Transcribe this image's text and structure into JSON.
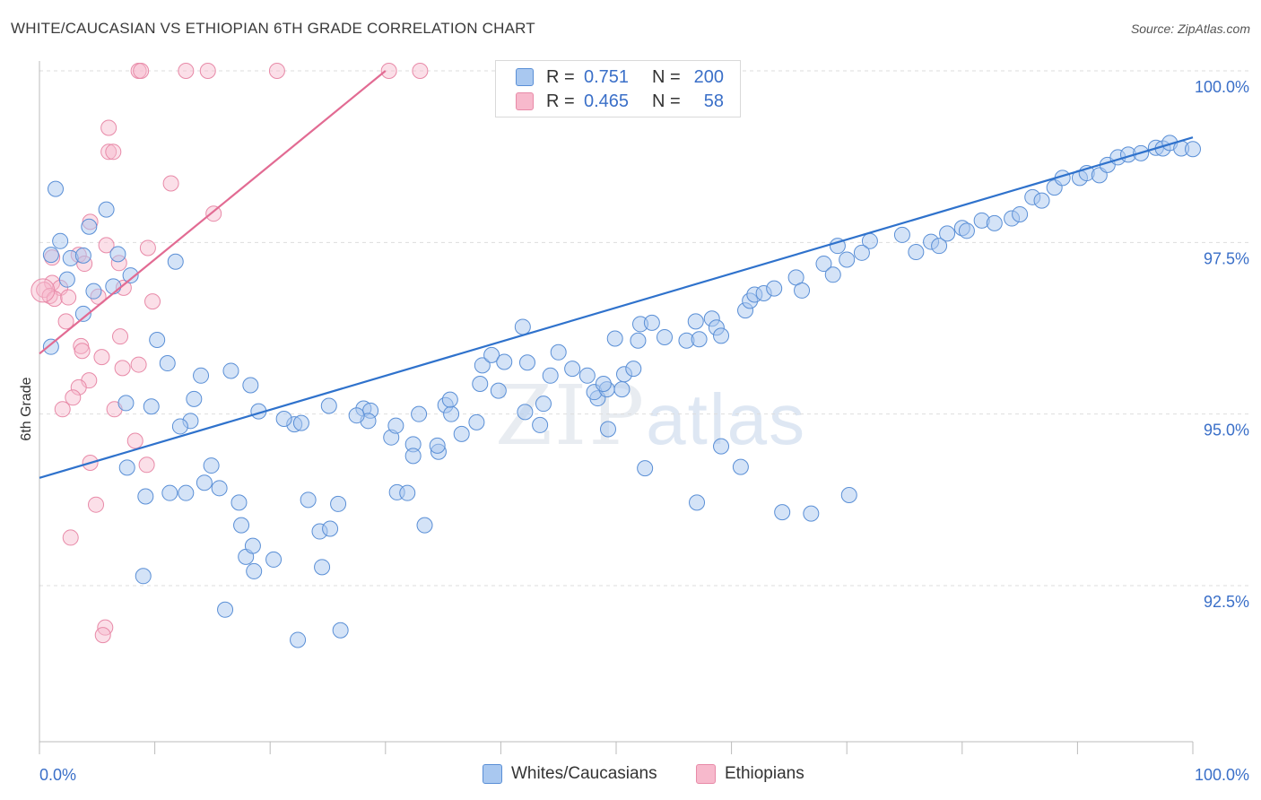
{
  "title": "WHITE/CAUCASIAN VS ETHIOPIAN 6TH GRADE CORRELATION CHART",
  "source": "Source: ZipAtlas.com",
  "watermark": {
    "zip": "ZIP",
    "atlas": "atlas"
  },
  "legend": {
    "rows": [
      {
        "r_label": "R =",
        "r_value": "0.751",
        "n_label": "N =",
        "n_value": "200"
      },
      {
        "r_label": "R =",
        "r_value": "0.465",
        "n_label": "N =",
        "n_value": "58"
      }
    ]
  },
  "bottom_legend": [
    "Whites/Caucasians",
    "Ethiopians"
  ],
  "colors": {
    "blue_fill": "#a9c8f0",
    "blue_stroke": "#5a8fd6",
    "blue_line": "#2f72cc",
    "pink_fill": "#f7b9cc",
    "pink_stroke": "#e88aa8",
    "pink_line": "#e26b93",
    "tick_label": "#3a6fc8",
    "grid": "#dddddd"
  },
  "chart_data": {
    "type": "scatter",
    "title": "WHITE/CAUCASIAN VS ETHIOPIAN 6TH GRADE CORRELATION CHART",
    "xlabel": "",
    "ylabel": "6th Grade",
    "xlim": [
      0,
      100
    ],
    "ylim": [
      90.5,
      100.5
    ],
    "x_tick_labels": [
      "0.0%",
      "100.0%"
    ],
    "y_ticks": [
      92.5,
      95.0,
      97.5,
      100.0
    ],
    "y_tick_labels": [
      "92.5%",
      "95.0%",
      "97.5%",
      "100.0%"
    ],
    "grid": "horizontal dashed",
    "legend_position": "top-center",
    "series": [
      {
        "name": "Whites/Caucasians",
        "trend": {
          "x": [
            0,
            100
          ],
          "y": [
            94.07,
            99.03
          ]
        },
        "points": [
          [
            1.4,
            98.28
          ],
          [
            1.0,
            97.32
          ],
          [
            1.8,
            97.52
          ],
          [
            4.3,
            97.73
          ],
          [
            5.8,
            97.98
          ],
          [
            2.7,
            97.27
          ],
          [
            3.8,
            97.31
          ],
          [
            2.4,
            96.96
          ],
          [
            4.7,
            96.79
          ],
          [
            3.8,
            96.46
          ],
          [
            6.8,
            97.33
          ],
          [
            7.9,
            97.02
          ],
          [
            11.8,
            97.22
          ],
          [
            1.0,
            95.98
          ],
          [
            6.4,
            96.86
          ],
          [
            10.2,
            96.08
          ],
          [
            14.0,
            95.56
          ],
          [
            13.4,
            95.22
          ],
          [
            11.1,
            95.74
          ],
          [
            7.6,
            94.22
          ],
          [
            9.7,
            95.11
          ],
          [
            7.5,
            95.16
          ],
          [
            9.2,
            93.8
          ],
          [
            11.3,
            93.85
          ],
          [
            12.7,
            93.85
          ],
          [
            13.1,
            94.9
          ],
          [
            12.2,
            94.82
          ],
          [
            14.9,
            94.25
          ],
          [
            15.6,
            93.92
          ],
          [
            14.3,
            94.0
          ],
          [
            17.5,
            93.38
          ],
          [
            17.9,
            92.92
          ],
          [
            18.5,
            93.08
          ],
          [
            17.3,
            93.71
          ],
          [
            19.0,
            95.04
          ],
          [
            16.6,
            95.63
          ],
          [
            18.3,
            95.42
          ],
          [
            22.1,
            94.85
          ],
          [
            22.7,
            94.87
          ],
          [
            21.2,
            94.93
          ],
          [
            23.3,
            93.75
          ],
          [
            25.1,
            95.12
          ],
          [
            24.5,
            92.77
          ],
          [
            24.3,
            93.29
          ],
          [
            25.2,
            93.33
          ],
          [
            25.9,
            93.69
          ],
          [
            28.1,
            95.08
          ],
          [
            28.7,
            95.05
          ],
          [
            28.5,
            94.9
          ],
          [
            27.5,
            94.98
          ],
          [
            30.5,
            94.66
          ],
          [
            30.9,
            94.83
          ],
          [
            31.0,
            93.86
          ],
          [
            32.4,
            94.56
          ],
          [
            32.4,
            94.39
          ],
          [
            31.9,
            93.85
          ],
          [
            34.6,
            94.45
          ],
          [
            35.2,
            95.13
          ],
          [
            34.5,
            94.54
          ],
          [
            32.9,
            95.0
          ],
          [
            35.7,
            95.0
          ],
          [
            35.6,
            95.21
          ],
          [
            36.6,
            94.71
          ],
          [
            37.9,
            94.88
          ],
          [
            38.2,
            95.44
          ],
          [
            38.4,
            95.71
          ],
          [
            39.2,
            95.86
          ],
          [
            40.3,
            95.76
          ],
          [
            41.9,
            96.27
          ],
          [
            42.3,
            95.75
          ],
          [
            39.8,
            95.34
          ],
          [
            42.1,
            95.03
          ],
          [
            43.4,
            94.84
          ],
          [
            43.7,
            95.15
          ],
          [
            44.3,
            95.56
          ],
          [
            45.0,
            95.9
          ],
          [
            46.2,
            95.66
          ],
          [
            47.5,
            95.56
          ],
          [
            48.4,
            95.23
          ],
          [
            49.3,
            94.78
          ],
          [
            48.1,
            95.32
          ],
          [
            49.2,
            95.36
          ],
          [
            50.7,
            95.58
          ],
          [
            50.5,
            95.36
          ],
          [
            48.9,
            95.44
          ],
          [
            51.5,
            95.66
          ],
          [
            51.9,
            96.07
          ],
          [
            49.9,
            96.1
          ],
          [
            52.1,
            96.31
          ],
          [
            53.1,
            96.33
          ],
          [
            54.2,
            96.12
          ],
          [
            56.1,
            96.07
          ],
          [
            57.2,
            96.09
          ],
          [
            56.9,
            96.35
          ],
          [
            58.3,
            96.39
          ],
          [
            58.7,
            96.26
          ],
          [
            59.1,
            96.14
          ],
          [
            61.2,
            96.51
          ],
          [
            61.6,
            96.65
          ],
          [
            62.0,
            96.74
          ],
          [
            62.8,
            96.76
          ],
          [
            63.7,
            96.83
          ],
          [
            65.6,
            96.99
          ],
          [
            66.1,
            96.8
          ],
          [
            68.0,
            97.19
          ],
          [
            69.2,
            97.45
          ],
          [
            68.8,
            97.03
          ],
          [
            70.0,
            97.25
          ],
          [
            72.0,
            97.52
          ],
          [
            71.3,
            97.35
          ],
          [
            74.8,
            97.61
          ],
          [
            76.0,
            97.36
          ],
          [
            77.3,
            97.51
          ],
          [
            78.0,
            97.45
          ],
          [
            78.7,
            97.63
          ],
          [
            80.0,
            97.71
          ],
          [
            80.4,
            97.67
          ],
          [
            81.7,
            97.82
          ],
          [
            82.8,
            97.78
          ],
          [
            84.3,
            97.85
          ],
          [
            85.0,
            97.91
          ],
          [
            86.1,
            98.16
          ],
          [
            86.9,
            98.11
          ],
          [
            88.0,
            98.3
          ],
          [
            88.7,
            98.44
          ],
          [
            90.2,
            98.44
          ],
          [
            90.8,
            98.51
          ],
          [
            91.9,
            98.48
          ],
          [
            92.6,
            98.63
          ],
          [
            93.5,
            98.74
          ],
          [
            94.4,
            98.78
          ],
          [
            95.5,
            98.8
          ],
          [
            96.8,
            98.88
          ],
          [
            97.4,
            98.87
          ],
          [
            98.0,
            98.95
          ],
          [
            99.0,
            98.87
          ],
          [
            100.0,
            98.86
          ],
          [
            57.0,
            93.71
          ],
          [
            59.1,
            94.53
          ],
          [
            60.8,
            94.23
          ],
          [
            64.4,
            93.57
          ],
          [
            66.9,
            93.55
          ],
          [
            70.2,
            93.82
          ],
          [
            52.5,
            94.21
          ],
          [
            33.4,
            93.38
          ],
          [
            20.3,
            92.88
          ],
          [
            18.6,
            92.71
          ],
          [
            9.0,
            92.64
          ],
          [
            16.1,
            92.15
          ],
          [
            26.1,
            91.85
          ],
          [
            22.4,
            91.71
          ]
        ]
      },
      {
        "name": "Ethiopians",
        "trend": {
          "x": [
            0,
            30
          ],
          "y": [
            95.88,
            100.0
          ]
        },
        "points": [
          [
            8.6,
            100.0
          ],
          [
            8.8,
            100.0
          ],
          [
            12.7,
            100.0
          ],
          [
            14.6,
            100.0
          ],
          [
            20.6,
            100.0
          ],
          [
            30.3,
            100.0
          ],
          [
            33.0,
            100.0
          ],
          [
            6.0,
            99.17
          ],
          [
            6.0,
            98.82
          ],
          [
            6.4,
            98.82
          ],
          [
            11.4,
            98.36
          ],
          [
            4.4,
            97.8
          ],
          [
            15.1,
            97.92
          ],
          [
            5.8,
            97.46
          ],
          [
            9.4,
            97.42
          ],
          [
            3.4,
            97.32
          ],
          [
            1.1,
            97.28
          ],
          [
            3.9,
            97.19
          ],
          [
            6.9,
            97.2
          ],
          [
            1.1,
            96.91
          ],
          [
            1.8,
            96.84
          ],
          [
            0.4,
            96.81
          ],
          [
            0.9,
            96.72
          ],
          [
            1.3,
            96.68
          ],
          [
            2.5,
            96.7
          ],
          [
            7.3,
            96.84
          ],
          [
            5.1,
            96.71
          ],
          [
            9.8,
            96.64
          ],
          [
            2.3,
            96.35
          ],
          [
            7.0,
            96.13
          ],
          [
            3.6,
            95.99
          ],
          [
            3.7,
            95.92
          ],
          [
            5.4,
            95.83
          ],
          [
            8.6,
            95.72
          ],
          [
            7.2,
            95.67
          ],
          [
            4.3,
            95.49
          ],
          [
            3.4,
            95.39
          ],
          [
            2.9,
            95.24
          ],
          [
            2.0,
            95.07
          ],
          [
            6.5,
            95.07
          ],
          [
            8.3,
            94.61
          ],
          [
            9.3,
            94.26
          ],
          [
            4.4,
            94.29
          ],
          [
            4.9,
            93.68
          ],
          [
            2.7,
            93.2
          ],
          [
            5.7,
            91.89
          ],
          [
            5.5,
            91.78
          ]
        ]
      }
    ]
  }
}
